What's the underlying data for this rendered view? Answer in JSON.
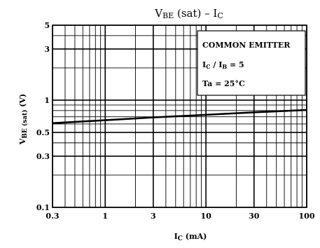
{
  "chart_data": {
    "type": "line",
    "title": "VBE (sat) – IC",
    "xlabel": "IC (mA)",
    "ylabel": "VBE (sat) (V)",
    "x_scale": "log",
    "y_scale": "log",
    "xlim": [
      0.3,
      100
    ],
    "ylim": [
      0.1,
      5
    ],
    "x_ticks": [
      "0.3",
      "1",
      "3",
      "10",
      "30",
      "100"
    ],
    "x_tick_values": [
      0.3,
      1,
      3,
      10,
      30,
      100
    ],
    "y_ticks": [
      "5",
      "3",
      "1",
      "0.5",
      "0.3",
      "0.1"
    ],
    "y_tick_values": [
      5,
      3,
      1,
      0.5,
      0.3,
      0.1
    ],
    "grid": true,
    "annotation": {
      "line1": "COMMON EMITTER",
      "line2": "IC / IB = 5",
      "line3": "Ta = 25°C"
    },
    "series": [
      {
        "x": [
          0.3,
          1,
          3,
          10,
          30,
          100
        ],
        "y": [
          0.61,
          0.65,
          0.69,
          0.73,
          0.77,
          0.81
        ]
      }
    ]
  }
}
